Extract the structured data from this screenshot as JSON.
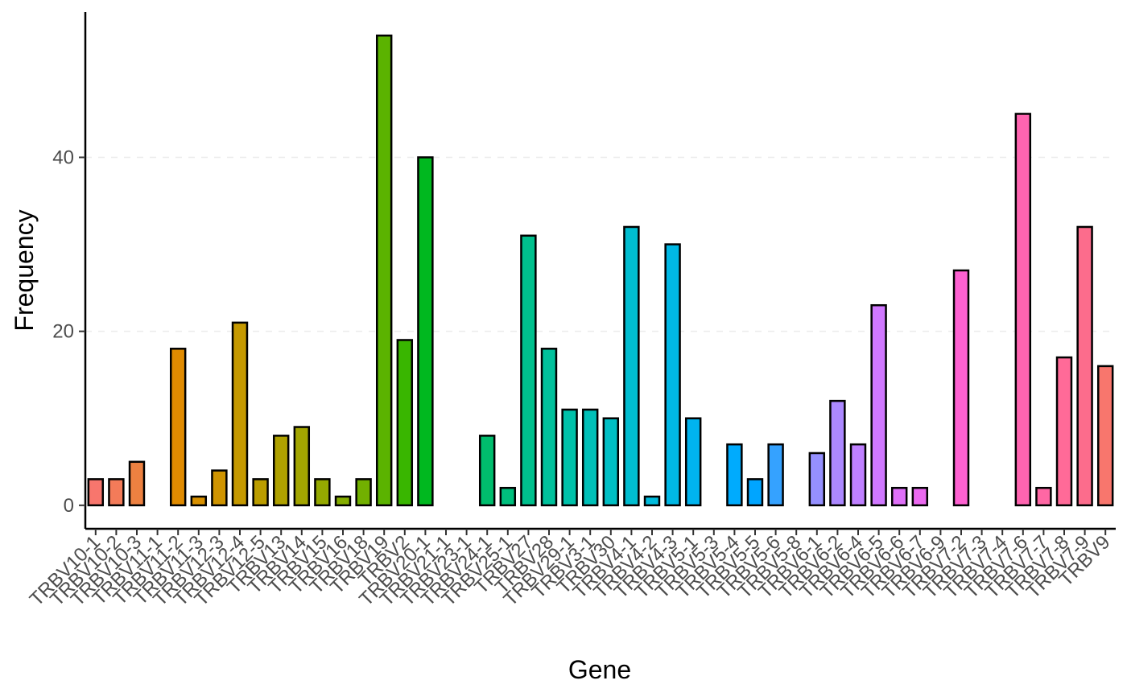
{
  "chart_data": {
    "type": "bar",
    "xlabel": "Gene",
    "ylabel": "Frequency",
    "ylim": [
      -2.7,
      56.7
    ],
    "yticks": [
      0,
      20,
      40
    ],
    "grid": "horizontal dashed at major ticks",
    "legend": "none",
    "categories": [
      "TRBV10-1",
      "TRBV10-2",
      "TRBV10-3",
      "TRBV11-1",
      "TRBV11-2",
      "TRBV11-3",
      "TRBV12-3",
      "TRBV12-4",
      "TRBV12-5",
      "TRBV13",
      "TRBV14",
      "TRBV15",
      "TRBV16",
      "TRBV18",
      "TRBV19",
      "TRBV2",
      "TRBV20-1",
      "TRBV21-1",
      "TRBV23-1",
      "TRBV24-1",
      "TRBV25-1",
      "TRBV27",
      "TRBV28",
      "TRBV29-1",
      "TRBV3-1",
      "TRBV30",
      "TRBV4-1",
      "TRBV4-2",
      "TRBV4-3",
      "TRBV5-1",
      "TRBV5-3",
      "TRBV5-4",
      "TRBV5-5",
      "TRBV5-6",
      "TRBV5-8",
      "TRBV6-1",
      "TRBV6-2",
      "TRBV6-4",
      "TRBV6-5",
      "TRBV6-6",
      "TRBV6-7",
      "TRBV6-9",
      "TRBV7-2",
      "TRBV7-3",
      "TRBV7-4",
      "TRBV7-6",
      "TRBV7-7",
      "TRBV7-8",
      "TRBV7-9",
      "TRBV9"
    ],
    "values": [
      3,
      3,
      5,
      0,
      18,
      1,
      4,
      21,
      3,
      8,
      9,
      3,
      1,
      3,
      54,
      19,
      40,
      0,
      0,
      8,
      2,
      31,
      18,
      11,
      11,
      10,
      32,
      1,
      30,
      10,
      0,
      7,
      3,
      7,
      0,
      6,
      12,
      7,
      23,
      2,
      2,
      0,
      27,
      0,
      0,
      45,
      2,
      17,
      32,
      16
    ],
    "colors": [
      "#F8766D",
      "#F37B59",
      "#ED8141",
      "#E7861B",
      "#E08B00",
      "#D89000",
      "#CF9400",
      "#C59900",
      "#BB9D00",
      "#AFA100",
      "#A3A500",
      "#95A900",
      "#85AD00",
      "#72B000",
      "#5BB300",
      "#39B600",
      "#00B81F",
      "#00BA42",
      "#00BC59",
      "#00BD6D",
      "#00BF7D",
      "#00C08D",
      "#00C19C",
      "#00C1AA",
      "#00C0B8",
      "#00BFC4",
      "#00BDD0",
      "#00BBDC",
      "#00B8E5",
      "#00B4EF",
      "#00B0F6",
      "#00ABFD",
      "#00A5FF",
      "#35A2FF",
      "#7997FF",
      "#9590FF",
      "#AC88FF",
      "#BF80FF",
      "#D078FF",
      "#DF70F8",
      "#EB69F0",
      "#F564E3",
      "#FD61D1",
      "#FF61C3",
      "#FF62BC",
      "#FF64B0",
      "#FF67A4",
      "#FF6A98",
      "#FC6C8C",
      "#F8766D"
    ]
  }
}
